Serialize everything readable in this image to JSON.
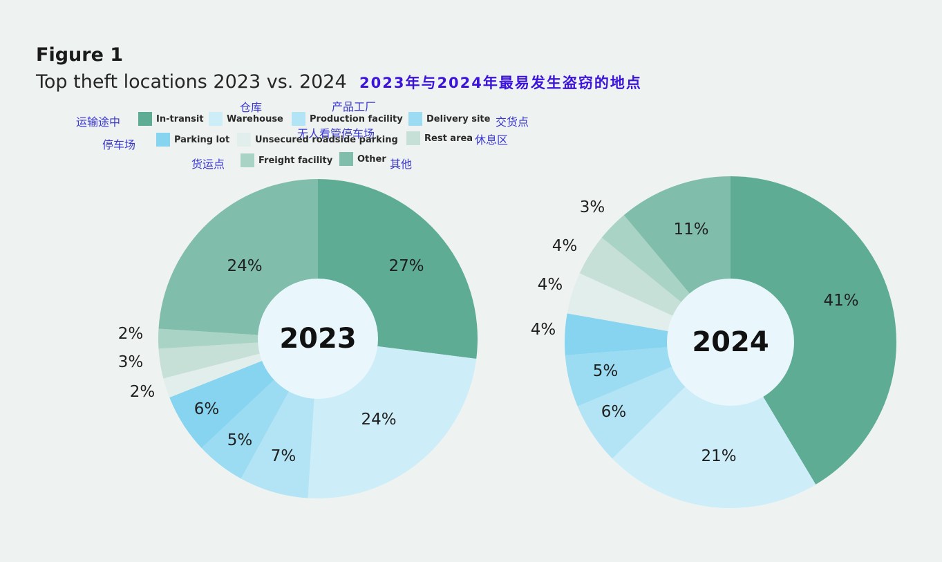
{
  "figure_label": "Figure 1",
  "title": "Top theft locations 2023 vs. 2024",
  "title_zh": "2023年与2024年最易发生盗窃的地点",
  "legend": [
    {
      "name": "In-transit",
      "zh": "运输途中",
      "color": "#5fac95"
    },
    {
      "name": "Warehouse",
      "zh": "仓库",
      "color": "#cdedf8"
    },
    {
      "name": "Production facility",
      "zh": "产品工厂",
      "color": "#b3e4f5"
    },
    {
      "name": "Delivery site",
      "zh": "交货点",
      "color": "#9bdcf2"
    },
    {
      "name": "Parking lot",
      "zh": "停车场",
      "color": "#86d4ef"
    },
    {
      "name": "Unsecured roadside parking",
      "zh": "无人看管停车场",
      "color": "#e2eeeb"
    },
    {
      "name": "Rest area",
      "zh": "休息区",
      "color": "#c6e0d8"
    },
    {
      "name": "Freight facility",
      "zh": "货运点",
      "color": "#a9d3c5"
    },
    {
      "name": "Other",
      "zh": "其他",
      "color": "#81bdab"
    }
  ],
  "chart_data": [
    {
      "type": "pie",
      "center_label": "2023",
      "categories": [
        "In-transit",
        "Warehouse",
        "Production facility",
        "Delivery site",
        "Parking lot",
        "Unsecured roadside parking",
        "Rest area",
        "Freight facility",
        "Other"
      ],
      "values": [
        27,
        24,
        7,
        5,
        6,
        2,
        3,
        2,
        24
      ],
      "labels": [
        "27%",
        "24%",
        "7%",
        "5%",
        "6%",
        "2%",
        "3%",
        "2%",
        "24%"
      ]
    },
    {
      "type": "pie",
      "center_label": "2024",
      "categories": [
        "In-transit",
        "Warehouse",
        "Production facility",
        "Delivery site",
        "Parking lot",
        "Unsecured roadside parking",
        "Rest area",
        "Freight facility",
        "Other"
      ],
      "values": [
        41,
        21,
        6,
        5,
        4,
        4,
        4,
        3,
        11
      ],
      "labels": [
        "41%",
        "21%",
        "6%",
        "5%",
        "4%",
        "4%",
        "4%",
        "3%",
        "11%"
      ]
    }
  ]
}
